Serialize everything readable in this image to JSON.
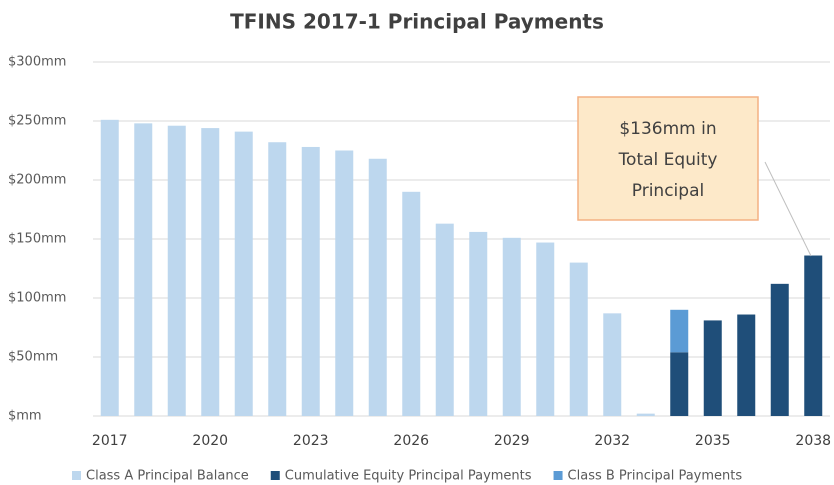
{
  "chart_data": {
    "type": "stacked_bar",
    "title": "TFINS 2017-1 Principal Payments",
    "categories": [
      "2017",
      null,
      null,
      "2020",
      null,
      null,
      "2023",
      null,
      null,
      "2026",
      null,
      null,
      "2029",
      null,
      null,
      "2032",
      null,
      null,
      "2035",
      null,
      null,
      "2038"
    ],
    "series": [
      {
        "name": "Class A Principal Balance",
        "color": "#bdd7ee",
        "values": [
          251,
          248,
          246,
          244,
          241,
          232,
          228,
          225,
          218,
          190,
          163,
          156,
          151,
          147,
          130,
          87,
          2,
          null,
          null,
          null,
          null,
          null
        ]
      },
      {
        "name": "Cumulative Equity Principal Payments",
        "color": "#1f4e79",
        "values": [
          null,
          null,
          null,
          null,
          null,
          null,
          null,
          null,
          null,
          null,
          null,
          null,
          null,
          null,
          null,
          null,
          null,
          54,
          81,
          86,
          112,
          136
        ]
      },
      {
        "name": "Class B Principal Payments",
        "color": "#5b9bd5",
        "values": [
          null,
          null,
          null,
          null,
          null,
          null,
          null,
          null,
          null,
          null,
          null,
          null,
          null,
          null,
          null,
          null,
          null,
          36,
          null,
          null,
          null,
          null
        ]
      }
    ],
    "ylim": [
      0,
      300
    ],
    "yticks": [
      {
        "value": 0,
        "label": "$mm"
      },
      {
        "value": 50,
        "label": "$50mm"
      },
      {
        "value": 100,
        "label": "$100mm"
      },
      {
        "value": 150,
        "label": "$150mm"
      },
      {
        "value": 200,
        "label": "$200mm"
      },
      {
        "value": 250,
        "label": "$250mm"
      },
      {
        "value": 300,
        "label": "$300mm"
      }
    ],
    "grid": true,
    "legend": "bottom",
    "annotation": {
      "lines": [
        "$136mm in",
        "Total Equity",
        "Principal"
      ]
    }
  }
}
